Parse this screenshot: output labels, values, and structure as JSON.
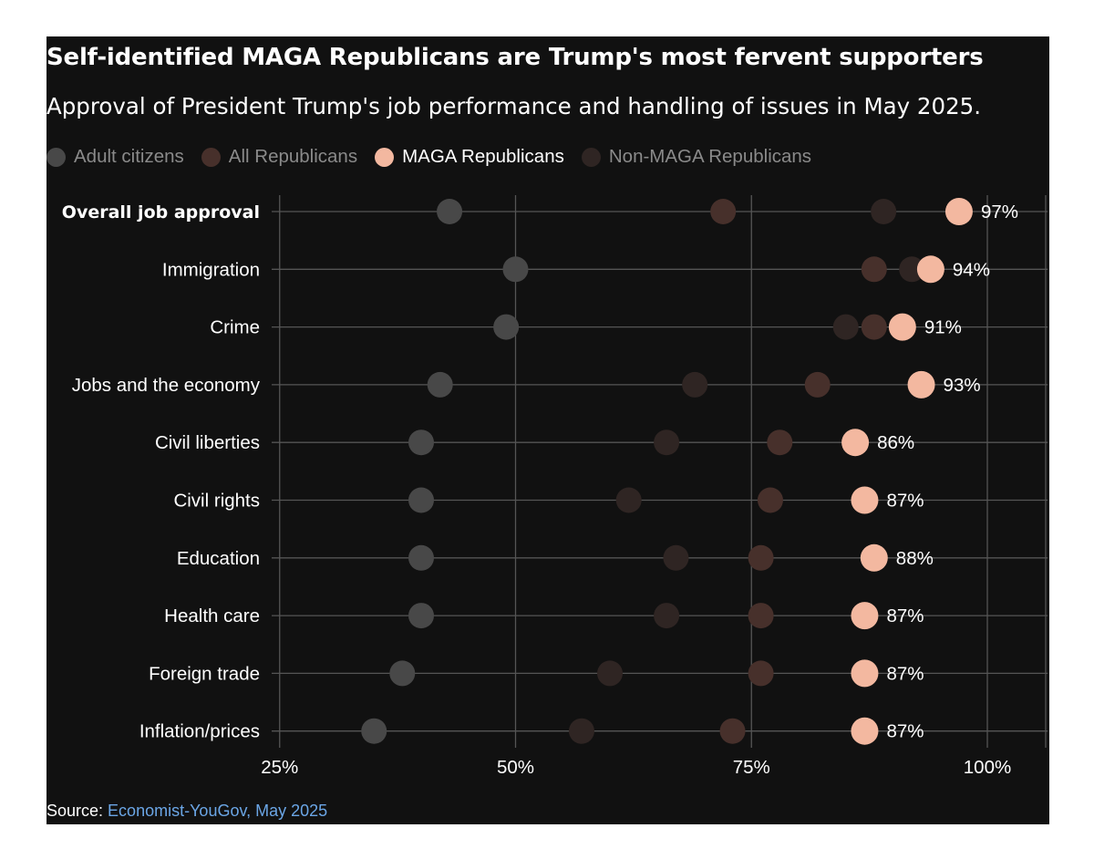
{
  "chart_data": {
    "type": "scatter",
    "title": "Self-identified MAGA Republicans are Trump's most fervent supporters",
    "subtitle": "Approval of President Trump's job performance and handling of issues in May 2025.",
    "categories": [
      "Overall job approval",
      "Immigration",
      "Crime",
      "Jobs and the economy",
      "Civil liberties",
      "Civil rights",
      "Education",
      "Health care",
      "Foreign trade",
      "Inflation/prices"
    ],
    "series": [
      {
        "name": "Adult citizens",
        "color": "#484848",
        "values": [
          43,
          50,
          49,
          42,
          40,
          40,
          40,
          40,
          38,
          35
        ]
      },
      {
        "name": "All Republicans",
        "color": "#47302b",
        "values": [
          72,
          88,
          88,
          82,
          78,
          77,
          76,
          76,
          76,
          73
        ]
      },
      {
        "name": "MAGA Republicans",
        "color": "#f3b8a0",
        "values": [
          97,
          94,
          91,
          93,
          86,
          87,
          88,
          87,
          87,
          87
        ]
      },
      {
        "name": "Non-MAGA Republicans",
        "color": "#2f2523",
        "values": [
          89,
          92,
          85,
          69,
          66,
          62,
          67,
          66,
          60,
          57
        ]
      }
    ],
    "highlight_series": "MAGA Republicans",
    "highlight_labels": [
      "97%",
      "94%",
      "91%",
      "93%",
      "86%",
      "87%",
      "88%",
      "87%",
      "87%",
      "87%"
    ],
    "xlim": [
      20,
      101
    ],
    "x_ticks": [
      25,
      50,
      75,
      100
    ],
    "x_tick_labels": [
      "25%",
      "50%",
      "75%",
      "100%"
    ],
    "bold_categories": [
      "Overall job approval"
    ],
    "grid": true,
    "legend_position": "top"
  },
  "source": {
    "prefix": "Source: ",
    "link_text": "Economist-YouGov, May 2025"
  },
  "colors": {
    "background": "#111111",
    "gridline": "#555555",
    "text": "#ffffff",
    "legend_dim_text": "#8a8a8a",
    "source_link": "#6ba6e6"
  }
}
